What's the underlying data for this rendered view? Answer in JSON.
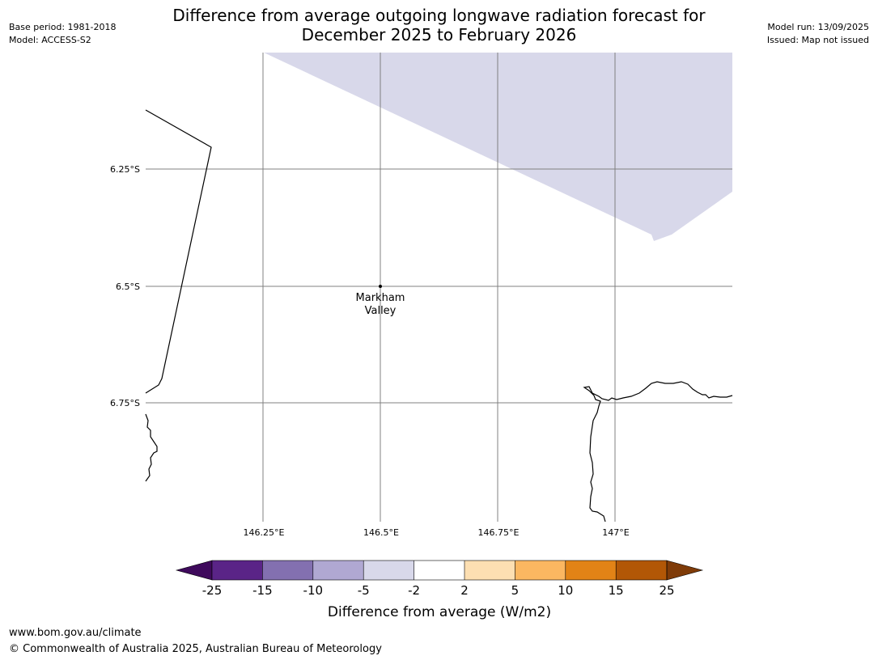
{
  "header": {
    "title_line1": "Difference from average outgoing longwave radiation forecast for",
    "title_line2": "December 2025 to February 2026",
    "base_period": "Base period: 1981-2018",
    "model": "Model: ACCESS-S2",
    "model_run": "Model run: 13/09/2025",
    "issued": "Issued: Map not issued"
  },
  "map": {
    "lon_ticks": [
      "146.25°E",
      "146.5°E",
      "146.75°E",
      "147°E"
    ],
    "lat_ticks": [
      "6.25°S",
      "6.5°S",
      "6.75°S"
    ],
    "place": {
      "name_line1": "Markham",
      "name_line2": "Valley"
    },
    "shaded_category": "-5 to -2",
    "colors": {
      "shaded": "#d8d8ea",
      "gridline": "#808080",
      "coastline": "#000000"
    }
  },
  "colorbar": {
    "title": "Difference from average (W/m2)",
    "labels": [
      "-25",
      "-15",
      "-10",
      "-5",
      "-2",
      "2",
      "5",
      "10",
      "15",
      "25"
    ],
    "colors": [
      "#3f0a5c",
      "#5a2487",
      "#8370b0",
      "#b0a8d2",
      "#d8d8ea",
      "#ffffff",
      "#fddfb2",
      "#fbb761",
      "#e28316",
      "#b25706",
      "#7f3b08"
    ]
  },
  "footer": {
    "url": "www.bom.gov.au/climate",
    "copyright": "© Commonwealth of Australia 2025, Australian Bureau of Meteorology"
  }
}
